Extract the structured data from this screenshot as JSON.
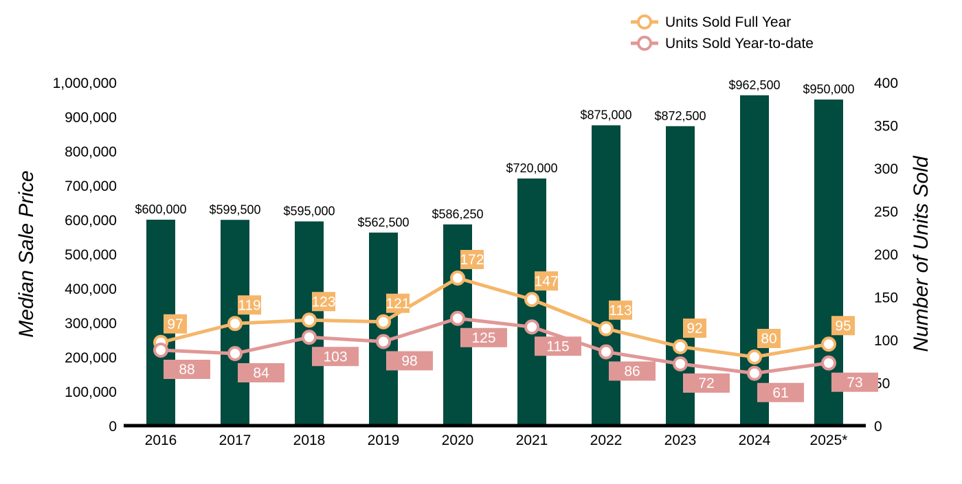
{
  "chart_data": {
    "type": "bar",
    "categories": [
      "2016",
      "2017",
      "2018",
      "2019",
      "2020",
      "2021",
      "2022",
      "2023",
      "2024",
      "2025*"
    ],
    "bars": {
      "values": [
        600000,
        599500,
        595000,
        562500,
        586250,
        720000,
        875000,
        872500,
        962500,
        950000
      ],
      "labels": [
        "$600,000",
        "$599,500",
        "$595,000",
        "$562,500",
        "$586,250",
        "$720,000",
        "$875,000",
        "$872,500",
        "$962,500",
        "$950,000"
      ],
      "color": "#024B3F"
    },
    "series": [
      {
        "name": "Units Sold Full Year",
        "type": "line",
        "axis": "right",
        "values": [
          97,
          119,
          123,
          121,
          172,
          147,
          113,
          92,
          80,
          95
        ],
        "color": "#F5B66A",
        "label_position": "above"
      },
      {
        "name": "Units Sold Year-to-date",
        "type": "line",
        "axis": "right",
        "values": [
          88,
          84,
          103,
          98,
          125,
          115,
          86,
          72,
          61,
          73
        ],
        "color": "#E09896",
        "label_position": "below"
      }
    ],
    "ylabel": "Median Sale Price",
    "y2label": "Number of Units Sold",
    "ylim": [
      0,
      1000000
    ],
    "y2lim": [
      0,
      400
    ],
    "yticks": [
      "0",
      "100,000",
      "200,000",
      "300,000",
      "400,000",
      "500,000",
      "600,000",
      "700,000",
      "800,000",
      "900,000",
      "1,000,000"
    ],
    "y2ticks": [
      "0",
      "50",
      "100",
      "150",
      "200",
      "250",
      "300",
      "350",
      "400"
    ],
    "grid": false,
    "legend_position": "top-right"
  }
}
